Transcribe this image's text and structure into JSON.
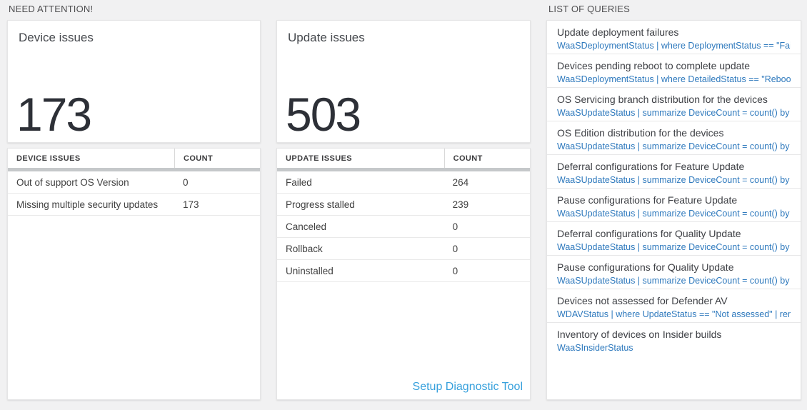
{
  "sections": {
    "need_attention": "NEED ATTENTION!",
    "list_of_queries": "LIST OF QUERIES"
  },
  "device_issues": {
    "title": "Device issues",
    "count": "173",
    "table": {
      "headers": [
        "DEVICE ISSUES",
        "COUNT"
      ],
      "rows": [
        {
          "label": "Out of support OS Version",
          "count": "0"
        },
        {
          "label": "Missing multiple security updates",
          "count": "173"
        }
      ]
    }
  },
  "update_issues": {
    "title": "Update issues",
    "count": "503",
    "table": {
      "headers": [
        "UPDATE ISSUES",
        "COUNT"
      ],
      "rows": [
        {
          "label": "Failed",
          "count": "264"
        },
        {
          "label": "Progress stalled",
          "count": "239"
        },
        {
          "label": "Canceled",
          "count": "0"
        },
        {
          "label": "Rollback",
          "count": "0"
        },
        {
          "label": "Uninstalled",
          "count": "0"
        }
      ]
    },
    "setup_link": "Setup Diagnostic Tool"
  },
  "queries": {
    "items": [
      {
        "title": "Update deployment failures",
        "query": "WaaSDeploymentStatus | where DeploymentStatus == \"Failed\" |..."
      },
      {
        "title": "Devices pending reboot to complete update",
        "query": "WaaSDeploymentStatus | where DetailedStatus == \"Reboot pend..."
      },
      {
        "title": "OS Servicing branch distribution for the devices",
        "query": "WaaSUpdateStatus | summarize DeviceCount = count() by OSSer..."
      },
      {
        "title": "OS Edition distribution for the devices",
        "query": "WaaSUpdateStatus | summarize DeviceCount = count() by OSEdit..."
      },
      {
        "title": "Deferral configurations for Feature Update",
        "query": "WaaSUpdateStatus | summarize DeviceCount = count() by Featur..."
      },
      {
        "title": "Pause configurations for Feature Update",
        "query": "WaaSUpdateStatus | summarize DeviceCount = count() by Featur..."
      },
      {
        "title": "Deferral configurations for Quality Update",
        "query": "WaaSUpdateStatus | summarize DeviceCount = count() by Qualit..."
      },
      {
        "title": "Pause configurations for Quality Update",
        "query": "WaaSUpdateStatus | summarize DeviceCount = count() by Qualit..."
      },
      {
        "title": "Devices not assessed for Defender AV",
        "query": "WDAVStatus | where UpdateStatus == \"Not assessed\" | render ta..."
      },
      {
        "title": "Inventory of devices on Insider builds",
        "query": "WaaSInsiderStatus"
      }
    ]
  },
  "colors": {
    "page_background": "#f1f1f2",
    "panel_background": "#ffffff",
    "big_number": "#2d3037",
    "query_link_blue": "#2e79bd",
    "setup_link_blue": "#36a0dc",
    "table_header_bar": "#c5c8ca"
  }
}
